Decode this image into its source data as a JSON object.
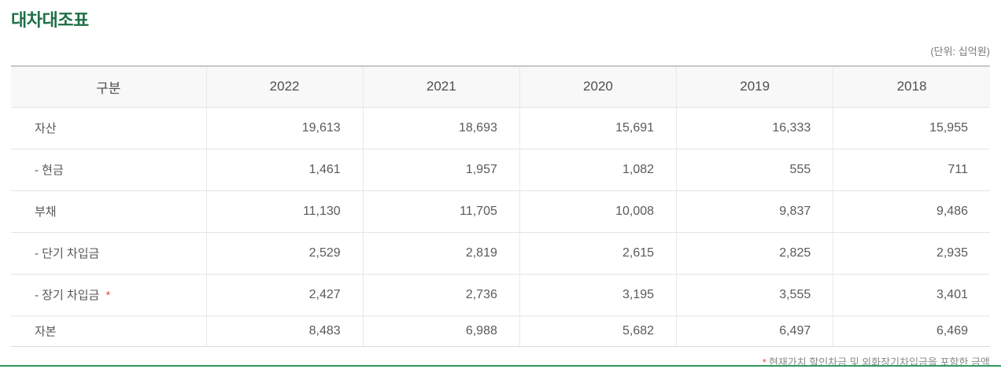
{
  "page": {
    "title": "대차대조표",
    "unit_label": "(단위: 십억원)",
    "footnote_marker": "*",
    "footnote_text": "현재가치 할인차금 및 외화장기차입금을 포함한 금액"
  },
  "table": {
    "columns": [
      "구분",
      "2022",
      "2021",
      "2020",
      "2019",
      "2018"
    ],
    "rows": [
      {
        "label": "자산",
        "values": [
          "19,613",
          "18,693",
          "15,691",
          "16,333",
          "15,955"
        ]
      },
      {
        "label": "- 현금",
        "values": [
          "1,461",
          "1,957",
          "1,082",
          "555",
          "711"
        ]
      },
      {
        "label": "부채",
        "values": [
          "11,130",
          "11,705",
          "10,008",
          "9,837",
          "9,486"
        ]
      },
      {
        "label": "- 단기 차입금",
        "values": [
          "2,529",
          "2,819",
          "2,615",
          "2,825",
          "2,935"
        ]
      },
      {
        "label": "- 장기 차입금",
        "asterisk": "*",
        "values": [
          "2,427",
          "2,736",
          "3,195",
          "3,555",
          "3,401"
        ]
      },
      {
        "label": "자본",
        "values": [
          "8,483",
          "6,988",
          "5,682",
          "6,497",
          "6,469"
        ]
      }
    ]
  },
  "colors": {
    "title_green": "#1d6f47",
    "divider_green": "#2f9a60",
    "accent_red": "#e8503a"
  }
}
